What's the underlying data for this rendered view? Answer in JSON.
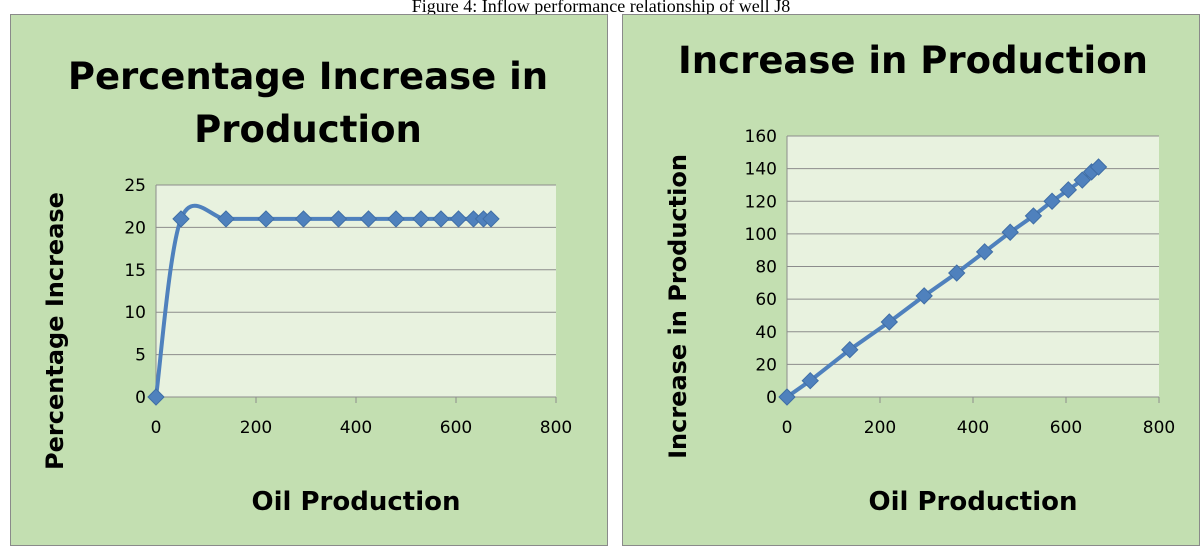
{
  "caption": "Figure 4: Inflow performance relationship of well J8",
  "chart_data": [
    {
      "type": "line",
      "title_lines": [
        "Percentage Increase in",
        "Production"
      ],
      "xlabel": "Oil Production",
      "ylabel": "Percentage Increase",
      "xlim": [
        0,
        800
      ],
      "ylim": [
        0,
        25
      ],
      "xticks": [
        0,
        200,
        400,
        600,
        800
      ],
      "yticks": [
        0,
        5,
        10,
        15,
        20,
        25
      ],
      "grid": true,
      "smooth": true,
      "series_color": "#4f81bd",
      "plot_bg": "#e8f2df",
      "x": [
        0,
        50,
        140,
        220,
        295,
        365,
        425,
        480,
        530,
        570,
        605,
        635,
        655,
        670
      ],
      "y": [
        0,
        21,
        21,
        21,
        21,
        21,
        21,
        21,
        21,
        21,
        21,
        21,
        21,
        21
      ]
    },
    {
      "type": "line",
      "title_lines": [
        "Increase in Production"
      ],
      "xlabel": "Oil Production",
      "ylabel": "Increase in Production",
      "xlim": [
        0,
        800
      ],
      "ylim": [
        0,
        160
      ],
      "xticks": [
        0,
        200,
        400,
        600,
        800
      ],
      "yticks": [
        0,
        20,
        40,
        60,
        80,
        100,
        120,
        140,
        160
      ],
      "grid": true,
      "smooth": false,
      "series_color": "#4f81bd",
      "plot_bg": "#e8f2df",
      "x": [
        0,
        50,
        135,
        220,
        295,
        365,
        425,
        480,
        530,
        570,
        605,
        635,
        655,
        670
      ],
      "y": [
        0,
        10,
        29,
        46,
        62,
        76,
        89,
        101,
        111,
        120,
        127,
        133,
        138,
        141
      ]
    }
  ]
}
